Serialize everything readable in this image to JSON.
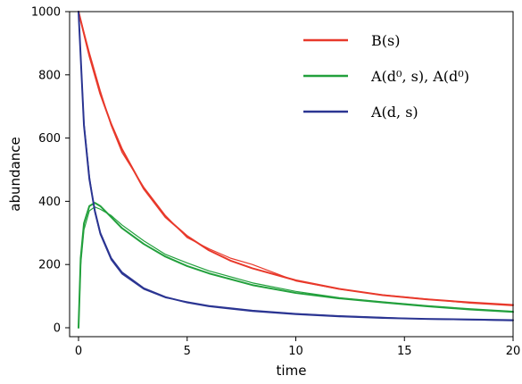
{
  "chart_data": {
    "type": "line",
    "title": "",
    "xlabel": "time",
    "ylabel": "abundance",
    "xlim": [
      0,
      20
    ],
    "ylim": [
      0,
      1000
    ],
    "xticks": [
      0,
      5,
      10,
      15,
      20
    ],
    "yticks": [
      0,
      200,
      400,
      600,
      800,
      1000
    ],
    "grid": false,
    "legend_position": "top-right",
    "legend": [
      {
        "label": "B(s)",
        "color": "#e8392b"
      },
      {
        "label": "A(d⁰, s), A(d⁰)",
        "color": "#22a03c"
      },
      {
        "label": "A(d, s)",
        "color": "#2b3592"
      }
    ],
    "series": [
      {
        "legend_index": 0,
        "color": "#e8392b",
        "x": [
          0,
          0.5,
          1,
          1.5,
          2,
          3,
          4,
          5,
          6,
          7,
          8,
          10,
          12,
          14,
          16,
          18,
          20
        ],
        "values": [
          1000,
          860,
          740,
          645,
          565,
          440,
          350,
          290,
          245,
          212,
          188,
          150,
          123,
          103,
          90,
          80,
          72
        ]
      },
      {
        "legend_index": 0,
        "color": "#e8392b",
        "x": [
          0,
          0.5,
          1,
          1.5,
          2,
          3,
          4,
          5,
          6,
          7,
          8,
          10,
          12,
          14,
          16,
          18,
          20
        ],
        "values": [
          1000,
          870,
          750,
          640,
          555,
          445,
          355,
          285,
          250,
          220,
          200,
          148,
          122,
          104,
          91,
          78,
          70
        ]
      },
      {
        "legend_index": 1,
        "color": "#22a03c",
        "x": [
          0,
          0.1,
          0.25,
          0.5,
          0.75,
          1,
          1.5,
          2,
          3,
          4,
          5,
          6,
          8,
          10,
          12,
          14,
          16,
          18,
          20
        ],
        "values": [
          0,
          220,
          330,
          385,
          395,
          385,
          350,
          315,
          265,
          225,
          195,
          172,
          135,
          110,
          93,
          80,
          68,
          58,
          50
        ]
      },
      {
        "legend_index": 1,
        "color": "#22a03c",
        "x": [
          0,
          0.1,
          0.25,
          0.5,
          0.75,
          1,
          1.5,
          2,
          3,
          4,
          5,
          6,
          8,
          10,
          12,
          14,
          16,
          18,
          20
        ],
        "values": [
          0,
          200,
          310,
          370,
          382,
          375,
          355,
          325,
          275,
          232,
          205,
          180,
          142,
          115,
          95,
          82,
          70,
          60,
          52
        ]
      },
      {
        "legend_index": 2,
        "color": "#2b3592",
        "x": [
          0,
          0.25,
          0.5,
          0.75,
          1,
          1.5,
          2,
          3,
          4,
          5,
          6,
          8,
          10,
          12,
          14,
          16,
          18,
          20
        ],
        "values": [
          1000,
          640,
          470,
          370,
          300,
          220,
          175,
          125,
          97,
          80,
          68,
          53,
          43,
          36,
          31,
          28,
          26,
          24
        ]
      },
      {
        "legend_index": 2,
        "color": "#2b3592",
        "x": [
          0,
          0.25,
          0.5,
          0.75,
          1,
          1.5,
          2,
          3,
          4,
          5,
          6,
          8,
          10,
          12,
          14,
          16,
          18,
          20
        ],
        "values": [
          1000,
          650,
          480,
          365,
          295,
          215,
          170,
          122,
          95,
          82,
          70,
          55,
          45,
          38,
          33,
          27,
          25,
          22
        ]
      }
    ]
  }
}
